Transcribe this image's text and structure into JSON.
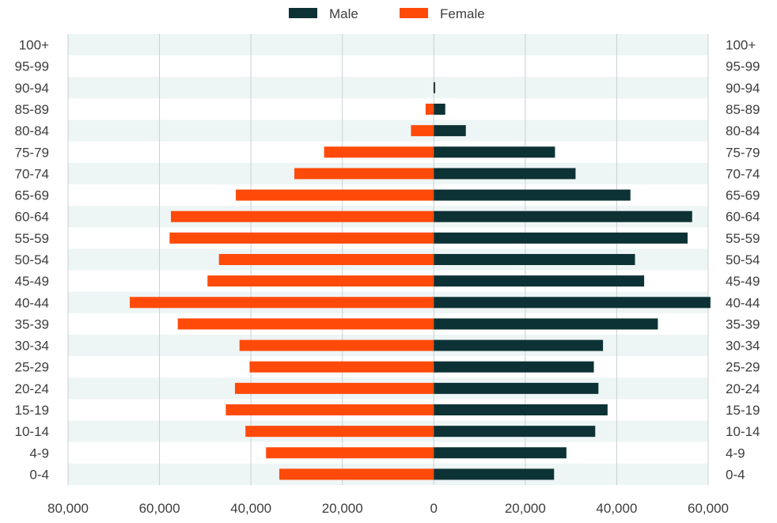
{
  "colors": {
    "male": "#0d3235",
    "female": "#ff4a0a",
    "band_light": "#eef5f5",
    "band_white": "#ffffff",
    "grid": "#c9d0d0",
    "text": "#3d3d3d"
  },
  "chart_data": {
    "type": "bar",
    "orientation": "horizontal",
    "layout_style": "population-pyramid",
    "legend": {
      "placement": "top-center"
    },
    "grid": true,
    "xlim": [
      -80000,
      60000
    ],
    "x_ticks": [
      -80000,
      -60000,
      -40000,
      -20000,
      0,
      20000,
      40000,
      60000
    ],
    "x_tick_labels": [
      "80,000",
      "60,000",
      "40,000",
      "20,000",
      "0",
      "20,000",
      "40,000",
      "60,000"
    ],
    "categories": [
      "100+",
      "95-99",
      "90-94",
      "85-89",
      "80-84",
      "75-79",
      "70-74",
      "65-69",
      "60-64",
      "55-59",
      "50-54",
      "45-49",
      "40-44",
      "35-39",
      "30-34",
      "25-29",
      "20-24",
      "15-19",
      "10-14",
      "4-9",
      "0-4"
    ],
    "series": [
      {
        "name": "Male",
        "side": "right",
        "values": [
          0,
          0,
          300,
          2500,
          7000,
          26500,
          31000,
          43000,
          56500,
          55500,
          44000,
          46000,
          60500,
          49000,
          37000,
          35000,
          36000,
          38000,
          35300,
          29000,
          26300
        ]
      },
      {
        "name": "Female",
        "side": "left",
        "values": [
          0,
          0,
          100,
          1800,
          5000,
          24000,
          30500,
          43300,
          57500,
          57800,
          47000,
          49500,
          66500,
          56000,
          42500,
          40300,
          43500,
          45500,
          41200,
          36700,
          33800
        ]
      }
    ]
  }
}
